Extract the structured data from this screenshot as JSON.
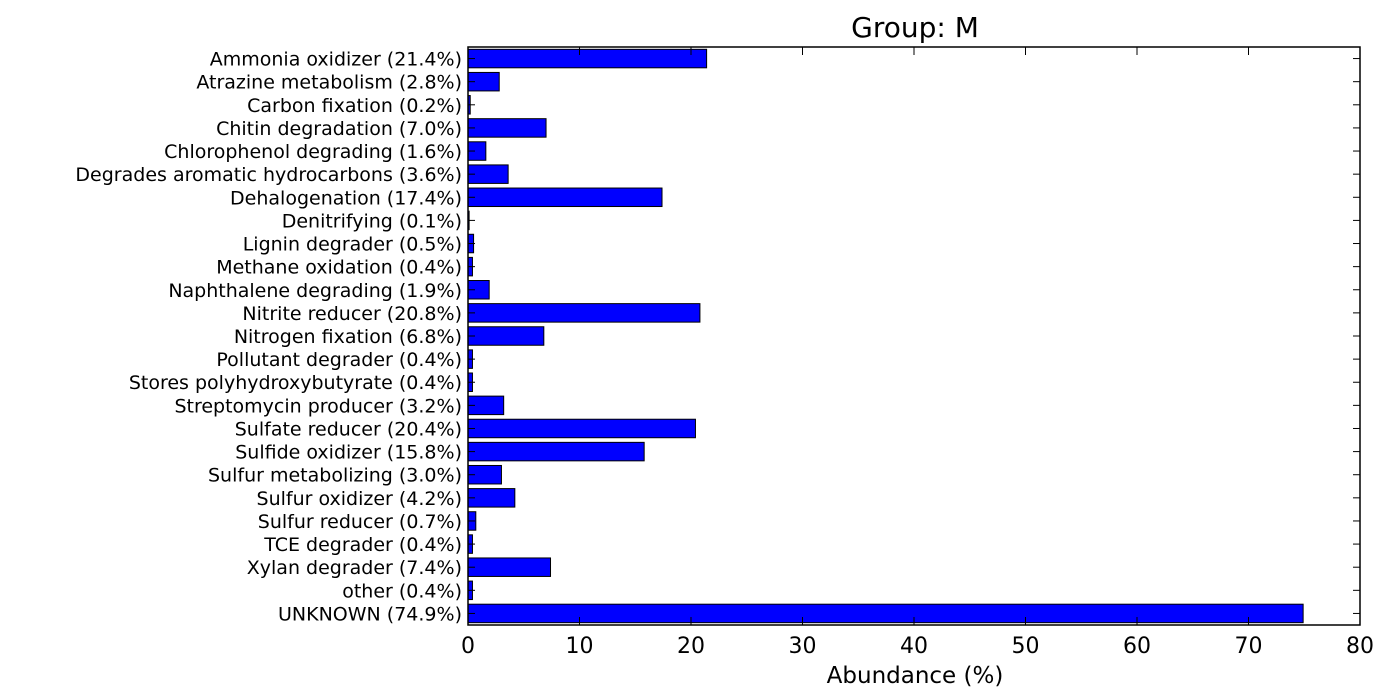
{
  "chart_data": {
    "type": "bar",
    "orientation": "horizontal",
    "title": "Group: M",
    "xlabel": "Abundance (%)",
    "ylabel": "",
    "xlim": [
      0,
      80
    ],
    "xticks": [
      0,
      10,
      20,
      30,
      40,
      50,
      60,
      70,
      80
    ],
    "grid": false,
    "categories": [
      "Ammonia oxidizer (21.4%)",
      "Atrazine metabolism (2.8%)",
      "Carbon fixation (0.2%)",
      "Chitin degradation (7.0%)",
      "Chlorophenol degrading (1.6%)",
      "Degrades aromatic hydrocarbons (3.6%)",
      "Dehalogenation (17.4%)",
      "Denitrifying (0.1%)",
      "Lignin degrader (0.5%)",
      "Methane oxidation (0.4%)",
      "Naphthalene degrading (1.9%)",
      "Nitrite reducer (20.8%)",
      "Nitrogen fixation (6.8%)",
      "Pollutant degrader (0.4%)",
      "Stores polyhydroxybutyrate (0.4%)",
      "Streptomycin producer (3.2%)",
      "Sulfate reducer (20.4%)",
      "Sulfide oxidizer (15.8%)",
      "Sulfur metabolizing (3.0%)",
      "Sulfur oxidizer (4.2%)",
      "Sulfur reducer (0.7%)",
      "TCE degrader (0.4%)",
      "Xylan degrader (7.4%)",
      "other (0.4%)",
      "UNKNOWN (74.9%)"
    ],
    "values": [
      21.4,
      2.8,
      0.2,
      7.0,
      1.6,
      3.6,
      17.4,
      0.1,
      0.5,
      0.4,
      1.9,
      20.8,
      6.8,
      0.4,
      0.4,
      3.2,
      20.4,
      15.8,
      3.0,
      4.2,
      0.7,
      0.4,
      7.4,
      0.4,
      74.9
    ],
    "colors": {
      "bar_fill": "#0000ff",
      "bar_edge": "#000000",
      "axes": "#000000",
      "background": "#ffffff"
    }
  }
}
